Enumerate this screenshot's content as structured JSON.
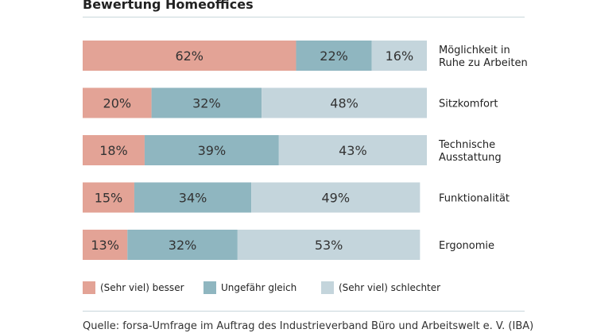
{
  "chart_data": {
    "type": "bar",
    "orientation": "horizontal",
    "stacked": true,
    "title": "Bewertung Homeoffices",
    "categories": [
      [
        "Möglichkeit in",
        "Ruhe zu Arbeiten"
      ],
      [
        "Sitzkomfort"
      ],
      [
        "Technische",
        "Ausstattung"
      ],
      [
        "Funktionalität"
      ],
      [
        "Ergonomie"
      ]
    ],
    "series": [
      {
        "name": "(Sehr viel) besser",
        "values": [
          62,
          20,
          18,
          15,
          13
        ]
      },
      {
        "name": "Ungefähr gleich",
        "values": [
          22,
          32,
          39,
          34,
          32
        ]
      },
      {
        "name": "(Sehr viel) schlechter",
        "values": [
          16,
          48,
          43,
          49,
          53
        ]
      }
    ],
    "value_suffix": "%",
    "xlim": [
      0,
      100
    ],
    "colors": [
      "#e3a396",
      "#8fb6c0",
      "#c4d5dc"
    ],
    "legend_position": "bottom",
    "source": "Quelle: forsa-Umfrage im Auftrag des Industrieverband Büro und Arbeitswelt e. V. (IBA)"
  }
}
